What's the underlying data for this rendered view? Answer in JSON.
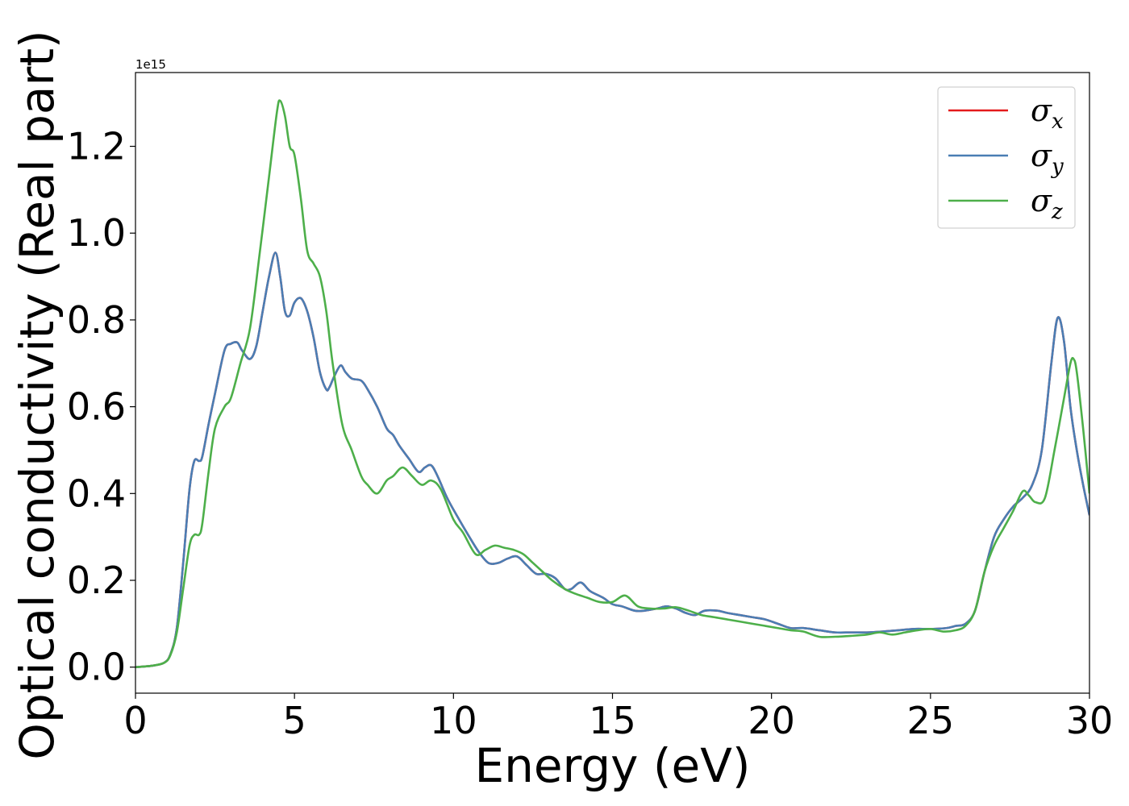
{
  "chart_data": {
    "type": "line",
    "xlabel": "Energy (eV)",
    "ylabel": "Optical conductivity (Real part)",
    "y_offset_text": "1e15",
    "xlim": [
      0,
      30
    ],
    "ylim": [
      -0.06,
      1.37
    ],
    "xticks": [
      0,
      5,
      10,
      15,
      20,
      25,
      30
    ],
    "xtick_labels": [
      "0",
      "5",
      "10",
      "15",
      "20",
      "25",
      "30"
    ],
    "yticks": [
      0.0,
      0.2,
      0.4,
      0.6,
      0.8,
      1.0,
      1.2
    ],
    "ytick_labels": [
      "0.0",
      "0.2",
      "0.4",
      "0.6",
      "0.8",
      "1.0",
      "1.2"
    ],
    "grid": false,
    "legend_position": "upper right",
    "series": [
      {
        "name": "σ_x",
        "legend_base": "σ",
        "legend_sub": "x",
        "color": "#e41a1c",
        "x": [
          0,
          0.5,
          0.9,
          1.1,
          1.3,
          1.5,
          1.7,
          1.85,
          2.0,
          2.1,
          2.3,
          2.5,
          2.8,
          3.0,
          3.2,
          3.35,
          3.6,
          3.8,
          4.0,
          4.2,
          4.4,
          4.55,
          4.7,
          4.85,
          5.0,
          5.2,
          5.4,
          5.6,
          5.8,
          6.0,
          6.1,
          6.25,
          6.45,
          6.6,
          6.8,
          7.1,
          7.3,
          7.6,
          7.9,
          8.1,
          8.3,
          8.6,
          8.9,
          9.1,
          9.3,
          9.5,
          9.8,
          10.1,
          10.5,
          10.8,
          11.1,
          11.4,
          11.7,
          12.0,
          12.3,
          12.6,
          12.9,
          13.2,
          13.5,
          13.7,
          14.0,
          14.3,
          14.7,
          15.0,
          15.3,
          15.7,
          16.0,
          16.4,
          16.7,
          17.0,
          17.3,
          17.6,
          17.9,
          18.3,
          18.6,
          19.0,
          19.4,
          19.8,
          20.2,
          20.6,
          21.0,
          21.5,
          22.0,
          22.5,
          23.0,
          23.5,
          24.0,
          24.5,
          25.0,
          25.5,
          25.8,
          26.1,
          26.4,
          26.7,
          27.0,
          27.3,
          27.6,
          27.9,
          28.2,
          28.5,
          28.8,
          29.0,
          29.2,
          29.4,
          29.6,
          29.8,
          30.0
        ],
        "y": [
          0.0,
          0.003,
          0.01,
          0.03,
          0.09,
          0.24,
          0.41,
          0.475,
          0.475,
          0.485,
          0.56,
          0.63,
          0.73,
          0.745,
          0.748,
          0.73,
          0.71,
          0.74,
          0.82,
          0.9,
          0.955,
          0.9,
          0.82,
          0.81,
          0.84,
          0.85,
          0.82,
          0.76,
          0.68,
          0.64,
          0.645,
          0.67,
          0.695,
          0.68,
          0.665,
          0.66,
          0.64,
          0.6,
          0.55,
          0.535,
          0.51,
          0.48,
          0.45,
          0.46,
          0.465,
          0.44,
          0.39,
          0.35,
          0.3,
          0.265,
          0.24,
          0.24,
          0.25,
          0.255,
          0.235,
          0.215,
          0.215,
          0.205,
          0.18,
          0.18,
          0.195,
          0.175,
          0.16,
          0.145,
          0.14,
          0.13,
          0.13,
          0.135,
          0.14,
          0.135,
          0.125,
          0.12,
          0.13,
          0.13,
          0.125,
          0.12,
          0.115,
          0.11,
          0.1,
          0.09,
          0.09,
          0.085,
          0.08,
          0.08,
          0.08,
          0.082,
          0.085,
          0.088,
          0.088,
          0.09,
          0.095,
          0.1,
          0.13,
          0.22,
          0.3,
          0.34,
          0.37,
          0.39,
          0.42,
          0.5,
          0.7,
          0.805,
          0.75,
          0.6,
          0.5,
          0.42,
          0.35
        ]
      },
      {
        "name": "σ_y",
        "legend_base": "σ",
        "legend_sub": "y",
        "color": "#4a7eb4",
        "x": [
          0,
          0.5,
          0.9,
          1.1,
          1.3,
          1.5,
          1.7,
          1.85,
          2.0,
          2.1,
          2.3,
          2.5,
          2.8,
          3.0,
          3.2,
          3.35,
          3.6,
          3.8,
          4.0,
          4.2,
          4.4,
          4.55,
          4.7,
          4.85,
          5.0,
          5.2,
          5.4,
          5.6,
          5.8,
          6.0,
          6.1,
          6.25,
          6.45,
          6.6,
          6.8,
          7.1,
          7.3,
          7.6,
          7.9,
          8.1,
          8.3,
          8.6,
          8.9,
          9.1,
          9.3,
          9.5,
          9.8,
          10.1,
          10.5,
          10.8,
          11.1,
          11.4,
          11.7,
          12.0,
          12.3,
          12.6,
          12.9,
          13.2,
          13.5,
          13.7,
          14.0,
          14.3,
          14.7,
          15.0,
          15.3,
          15.7,
          16.0,
          16.4,
          16.7,
          17.0,
          17.3,
          17.6,
          17.9,
          18.3,
          18.6,
          19.0,
          19.4,
          19.8,
          20.2,
          20.6,
          21.0,
          21.5,
          22.0,
          22.5,
          23.0,
          23.5,
          24.0,
          24.5,
          25.0,
          25.5,
          25.8,
          26.1,
          26.4,
          26.7,
          27.0,
          27.3,
          27.6,
          27.9,
          28.2,
          28.5,
          28.8,
          29.0,
          29.2,
          29.4,
          29.6,
          29.8,
          30.0
        ],
        "y": [
          0.0,
          0.003,
          0.01,
          0.03,
          0.09,
          0.24,
          0.41,
          0.475,
          0.475,
          0.485,
          0.56,
          0.63,
          0.73,
          0.745,
          0.748,
          0.73,
          0.71,
          0.74,
          0.82,
          0.9,
          0.955,
          0.9,
          0.82,
          0.81,
          0.84,
          0.85,
          0.82,
          0.76,
          0.68,
          0.64,
          0.645,
          0.67,
          0.695,
          0.68,
          0.665,
          0.66,
          0.64,
          0.6,
          0.55,
          0.535,
          0.51,
          0.48,
          0.45,
          0.46,
          0.465,
          0.44,
          0.39,
          0.35,
          0.3,
          0.265,
          0.24,
          0.24,
          0.25,
          0.255,
          0.235,
          0.215,
          0.215,
          0.205,
          0.18,
          0.18,
          0.195,
          0.175,
          0.16,
          0.145,
          0.14,
          0.13,
          0.13,
          0.135,
          0.14,
          0.135,
          0.125,
          0.12,
          0.13,
          0.13,
          0.125,
          0.12,
          0.115,
          0.11,
          0.1,
          0.09,
          0.09,
          0.085,
          0.08,
          0.08,
          0.08,
          0.082,
          0.085,
          0.088,
          0.088,
          0.09,
          0.095,
          0.1,
          0.13,
          0.22,
          0.3,
          0.34,
          0.37,
          0.39,
          0.42,
          0.5,
          0.7,
          0.805,
          0.75,
          0.6,
          0.5,
          0.42,
          0.35
        ]
      },
      {
        "name": "σ_z",
        "legend_base": "σ",
        "legend_sub": "z",
        "color": "#4daf4a",
        "x": [
          0,
          0.5,
          0.9,
          1.1,
          1.3,
          1.5,
          1.7,
          1.85,
          2.0,
          2.1,
          2.3,
          2.5,
          2.8,
          3.0,
          3.3,
          3.6,
          3.9,
          4.2,
          4.45,
          4.55,
          4.7,
          4.85,
          5.0,
          5.2,
          5.4,
          5.6,
          5.8,
          6.0,
          6.2,
          6.5,
          6.8,
          7.1,
          7.3,
          7.6,
          7.9,
          8.1,
          8.4,
          8.7,
          9.0,
          9.3,
          9.6,
          10.0,
          10.3,
          10.7,
          11.0,
          11.3,
          11.6,
          11.9,
          12.2,
          12.5,
          12.8,
          13.1,
          13.5,
          13.8,
          14.2,
          14.6,
          15.0,
          15.4,
          15.8,
          16.2,
          16.6,
          17.0,
          17.4,
          17.8,
          18.2,
          18.6,
          19.0,
          19.4,
          19.8,
          20.2,
          20.6,
          21.0,
          21.5,
          22.0,
          22.5,
          23.0,
          23.4,
          23.8,
          24.2,
          24.6,
          25.0,
          25.4,
          25.8,
          26.1,
          26.4,
          26.7,
          27.0,
          27.3,
          27.6,
          27.9,
          28.1,
          28.3,
          28.6,
          28.9,
          29.2,
          29.4,
          29.5,
          29.6,
          29.8,
          30.0
        ],
        "y": [
          0.0,
          0.003,
          0.01,
          0.028,
          0.08,
          0.18,
          0.28,
          0.305,
          0.305,
          0.33,
          0.45,
          0.55,
          0.6,
          0.62,
          0.7,
          0.78,
          0.95,
          1.13,
          1.28,
          1.305,
          1.27,
          1.2,
          1.18,
          1.08,
          0.96,
          0.93,
          0.9,
          0.82,
          0.7,
          0.56,
          0.5,
          0.44,
          0.42,
          0.4,
          0.43,
          0.44,
          0.46,
          0.44,
          0.42,
          0.43,
          0.41,
          0.34,
          0.31,
          0.26,
          0.27,
          0.28,
          0.275,
          0.27,
          0.26,
          0.24,
          0.22,
          0.2,
          0.18,
          0.17,
          0.16,
          0.15,
          0.15,
          0.165,
          0.14,
          0.135,
          0.135,
          0.138,
          0.13,
          0.12,
          0.115,
          0.11,
          0.105,
          0.1,
          0.095,
          0.09,
          0.085,
          0.082,
          0.07,
          0.07,
          0.072,
          0.075,
          0.08,
          0.075,
          0.08,
          0.085,
          0.088,
          0.082,
          0.085,
          0.095,
          0.13,
          0.22,
          0.28,
          0.32,
          0.36,
          0.405,
          0.395,
          0.38,
          0.39,
          0.5,
          0.62,
          0.7,
          0.71,
          0.68,
          0.55,
          0.4
        ]
      }
    ]
  }
}
